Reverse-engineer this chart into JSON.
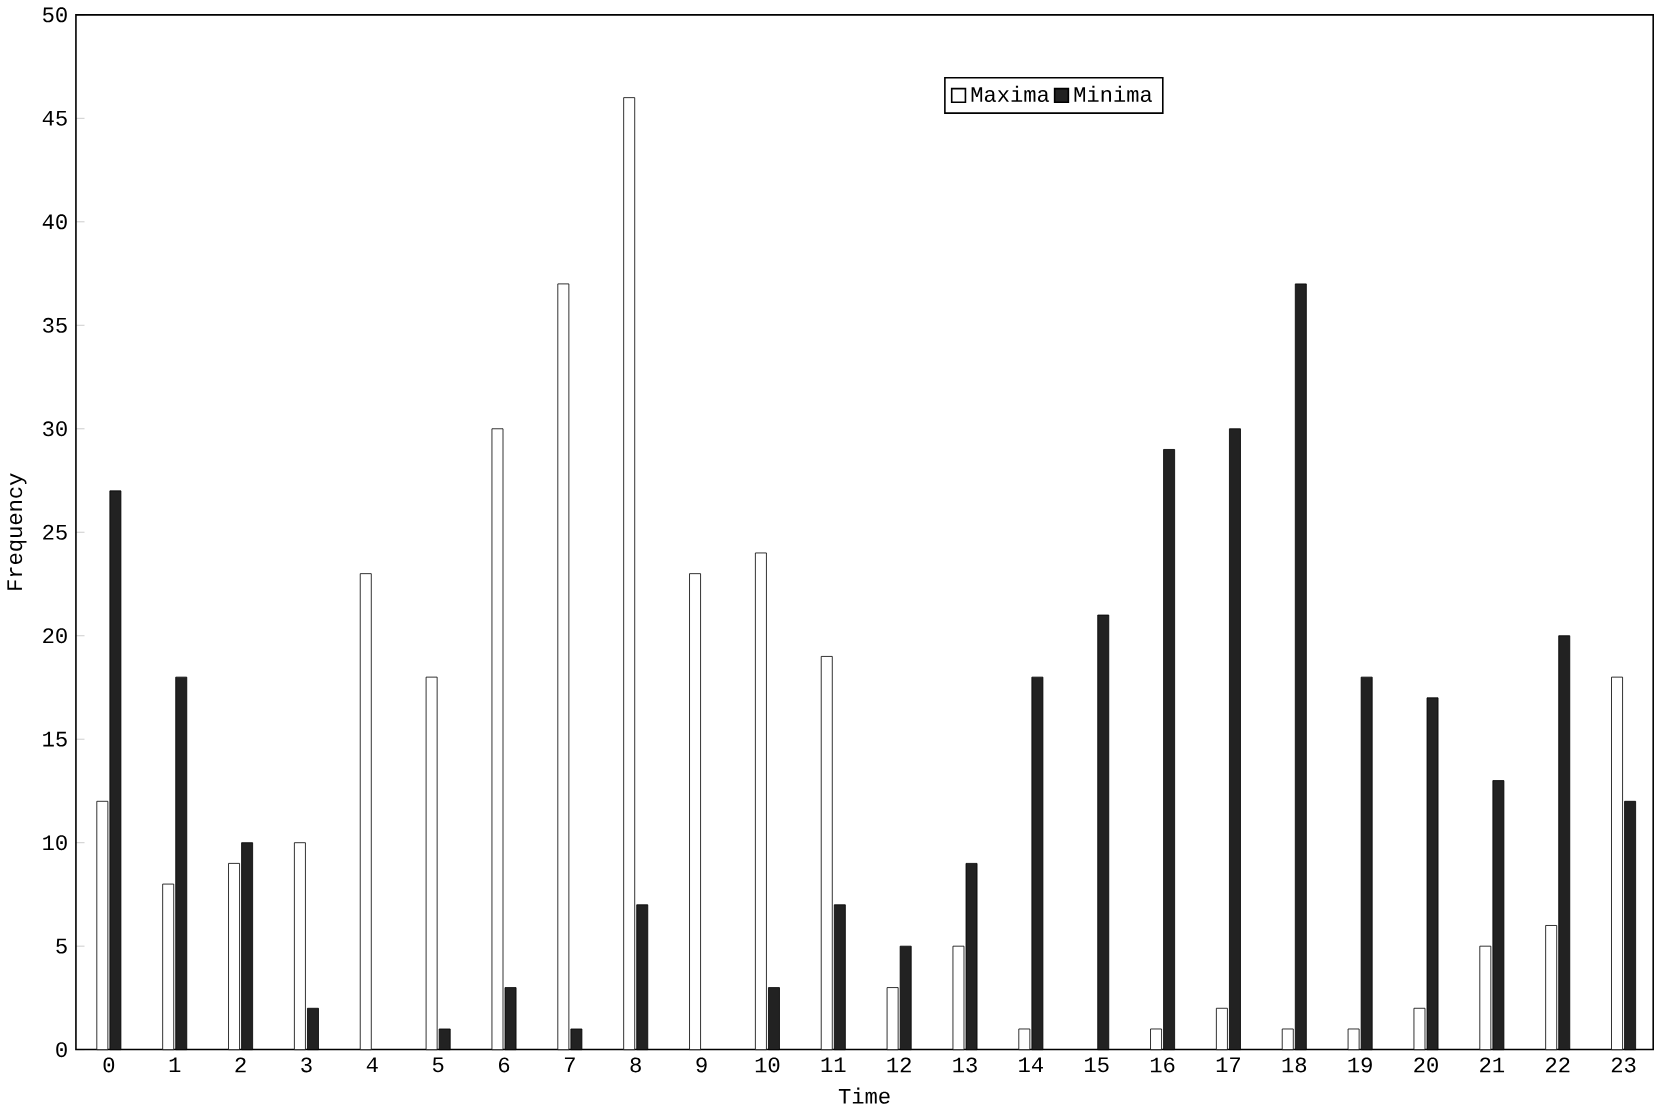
{
  "chart_data": {
    "type": "bar",
    "xlabel": "Time",
    "ylabel": "Frequency",
    "categories": [
      "0",
      "1",
      "2",
      "3",
      "4",
      "5",
      "6",
      "7",
      "8",
      "9",
      "10",
      "11",
      "12",
      "13",
      "14",
      "15",
      "16",
      "17",
      "18",
      "19",
      "20",
      "21",
      "22",
      "23"
    ],
    "series": [
      {
        "name": "Maxima",
        "color": "#ffffff",
        "values": [
          12,
          8,
          9,
          10,
          23,
          18,
          30,
          37,
          46,
          23,
          24,
          19,
          3,
          5,
          1,
          0,
          1,
          2,
          1,
          1,
          2,
          5,
          6,
          18
        ]
      },
      {
        "name": "Minima",
        "color": "#222222",
        "values": [
          27,
          18,
          10,
          2,
          0,
          1,
          3,
          1,
          7,
          0,
          3,
          7,
          5,
          9,
          18,
          21,
          29,
          30,
          37,
          18,
          17,
          13,
          20,
          12
        ]
      }
    ],
    "ylim": [
      0,
      50
    ],
    "yticks": [
      0,
      5,
      10,
      15,
      20,
      25,
      30,
      35,
      40,
      45,
      50
    ],
    "legend": "top",
    "grid": false
  }
}
